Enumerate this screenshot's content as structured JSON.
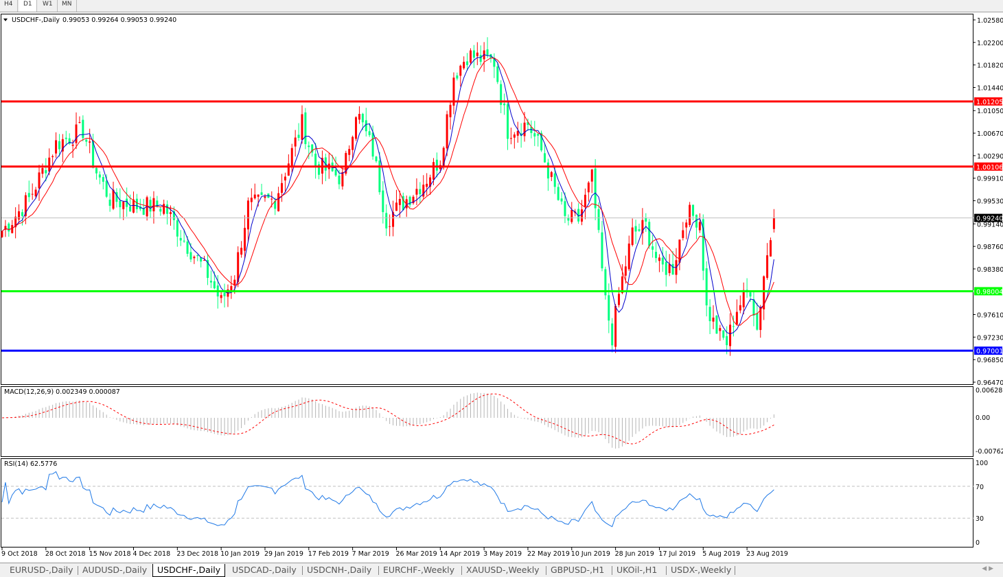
{
  "timeframes": [
    "H4",
    "D1",
    "W1",
    "MN"
  ],
  "active_timeframe": "D1",
  "header": {
    "symbol": "USDCHF-,Daily",
    "ohlc": "0.99053 0.99264 0.99053 0.99240"
  },
  "price_axis": [
    "1.02580",
    "1.02200",
    "1.01820",
    "1.01440",
    "1.01050",
    "1.00670",
    "1.00290",
    "0.99910",
    "0.99530",
    "0.99140",
    "0.98760",
    "0.98380",
    "0.97610",
    "0.97230",
    "0.96850",
    "0.96470"
  ],
  "levels": [
    {
      "price": 1.01205,
      "label": "1.01205",
      "color": "#ff0000"
    },
    {
      "price": 1.00106,
      "label": "1.00106",
      "color": "#ff0000"
    },
    {
      "price": 0.98004,
      "label": "0.98004",
      "color": "#00ff00"
    },
    {
      "price": 0.97001,
      "label": "0.97001",
      "color": "#0000ff"
    }
  ],
  "current_price": {
    "price": 0.9924,
    "label": "0.99240"
  },
  "colors": {
    "bull": "#ff0000",
    "bear": "#00ff7f",
    "ma_fast": "#0000cc",
    "ma_slow": "#ff0000",
    "rsi": "#1e78e6",
    "macd_hist": "#b4b4b4",
    "macd_signal": "#ff0000"
  },
  "macd": {
    "label": "MACD(12,26,9) 0.002349 0.000087",
    "axis": [
      "0.006286",
      "0.00",
      "-0.00762"
    ]
  },
  "rsi": {
    "label": "RSI(14) 62.5776",
    "axis": [
      "100",
      "70",
      "30",
      "0"
    ]
  },
  "chart_data": {
    "type": "candlestick",
    "title": "USDCHF-,Daily",
    "ylim": [
      0.9647,
      1.0258
    ],
    "close_path": [
      [
        0,
        0.9902
      ],
      [
        3,
        0.9921
      ],
      [
        8,
        0.9956
      ],
      [
        16,
        1.0049
      ],
      [
        24,
        1.0072
      ],
      [
        28,
        1.0002
      ],
      [
        32,
        0.9956
      ],
      [
        40,
        0.9944
      ],
      [
        48,
        0.9944
      ],
      [
        54,
        0.9886
      ],
      [
        61,
        0.9829
      ],
      [
        65,
        0.9782
      ],
      [
        69,
        0.9829
      ],
      [
        73,
        0.9944
      ],
      [
        81,
        0.9956
      ],
      [
        89,
        1.0083
      ],
      [
        93,
        1.0014
      ],
      [
        101,
        0.9991
      ],
      [
        105,
        1.0106
      ],
      [
        110,
        1.0037
      ],
      [
        114,
        0.9921
      ],
      [
        118,
        0.9944
      ],
      [
        126,
        0.9991
      ],
      [
        130,
        1.0025
      ],
      [
        134,
        1.0164
      ],
      [
        138,
        1.0199
      ],
      [
        146,
        1.0187
      ],
      [
        150,
        1.0072
      ],
      [
        156,
        1.0083
      ],
      [
        160,
        1.0037
      ],
      [
        167,
        0.9921
      ],
      [
        171,
        0.9921
      ],
      [
        175,
        0.9991
      ],
      [
        179,
        0.9782
      ],
      [
        181,
        0.9724
      ],
      [
        183,
        0.9794
      ],
      [
        187,
        0.9898
      ],
      [
        191,
        0.991
      ],
      [
        195,
        0.984
      ],
      [
        199,
        0.984
      ],
      [
        203,
        0.9933
      ],
      [
        207,
        0.9921
      ],
      [
        209,
        0.9771
      ],
      [
        213,
        0.9724
      ],
      [
        215,
        0.9713
      ],
      [
        218,
        0.9771
      ],
      [
        222,
        0.9806
      ],
      [
        224,
        0.9736
      ],
      [
        226,
        0.9829
      ],
      [
        229,
        0.9924
      ]
    ],
    "x_ticks": [
      "9 Oct 2018",
      "28 Oct 2018",
      "15 Nov 2018",
      "4 Dec 2018",
      "23 Dec 2018",
      "10 Jan 2019",
      "29 Jan 2019",
      "17 Feb 2019",
      "7 Mar 2019",
      "26 Mar 2019",
      "14 Apr 2019",
      "3 May 2019",
      "22 May 2019",
      "10 Jun 2019",
      "28 Jun 2019",
      "17 Jul 2019",
      "5 Aug 2019",
      "23 Aug 2019"
    ]
  },
  "symbol_tabs": [
    "EURUSD-,Daily",
    "AUDUSD-,Daily",
    "USDCHF-,Daily",
    "USDCAD-,Daily",
    "USDCNH-,Daily",
    "EURCHF-,Weekly",
    "XAUUSD-,Weekly",
    "GBPUSD-,H1",
    "UKOil-,H1",
    "USDX-,Weekly"
  ],
  "active_tab": "USDCHF-,Daily"
}
